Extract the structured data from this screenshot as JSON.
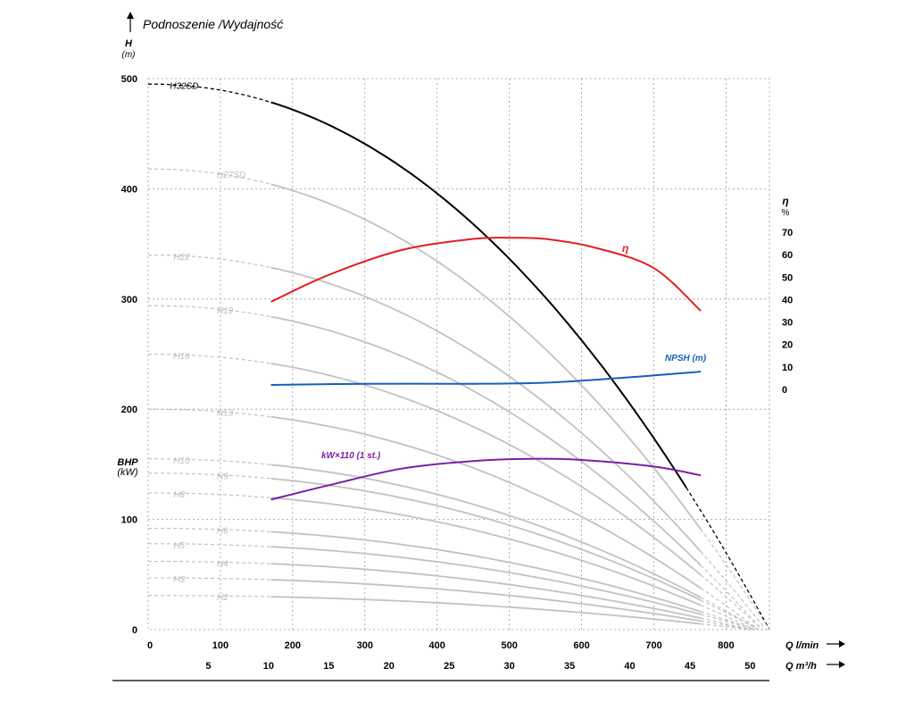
{
  "chart_data": {
    "type": "line",
    "title": "Podnoszenie /Wydajność",
    "y_axis": {
      "label": "H",
      "unit": "(m)",
      "ylim": [
        0,
        500
      ],
      "ticks": [
        0,
        100,
        200,
        300,
        400,
        500
      ]
    },
    "x_axis": {
      "label": "Q l/min",
      "xlim": [
        0,
        860
      ],
      "ticks": [
        0,
        100,
        200,
        300,
        400,
        500,
        600,
        700,
        800
      ]
    },
    "x_axis2": {
      "label": "Q m³/h",
      "ticks": [
        5,
        10,
        15,
        20,
        25,
        30,
        35,
        40,
        45,
        50
      ]
    },
    "bhp_axis": {
      "label": "BHP",
      "unit": "(kW)"
    },
    "eta_axis": {
      "label": "η",
      "unit": "%",
      "ylim": [
        0,
        70
      ],
      "ticks": [
        0,
        10,
        20,
        30,
        40,
        50,
        60,
        70
      ]
    },
    "grid": true,
    "head_curves": [
      {
        "name": "H32SD",
        "h0": 495,
        "qmax": 860,
        "color": "#000000"
      },
      {
        "name": "H27SD",
        "h0": 418,
        "qmax": 860,
        "color": "#bdbdbd"
      },
      {
        "name": "H22",
        "h0": 340,
        "qmax": 855,
        "color": "#bdbdbd"
      },
      {
        "name": "H19",
        "h0": 294,
        "qmax": 850,
        "color": "#bdbdbd"
      },
      {
        "name": "H16",
        "h0": 250,
        "qmax": 850,
        "color": "#bdbdbd"
      },
      {
        "name": "H13",
        "h0": 200,
        "qmax": 845,
        "color": "#bdbdbd"
      },
      {
        "name": "H10",
        "h0": 155,
        "qmax": 845,
        "color": "#bdbdbd"
      },
      {
        "name": "H9",
        "h0": 142,
        "qmax": 845,
        "color": "#bdbdbd"
      },
      {
        "name": "H8",
        "h0": 124,
        "qmax": 840,
        "color": "#bdbdbd"
      },
      {
        "name": "H6",
        "h0": 92,
        "qmax": 840,
        "color": "#bdbdbd"
      },
      {
        "name": "H5",
        "h0": 78,
        "qmax": 840,
        "color": "#bdbdbd"
      },
      {
        "name": "H4",
        "h0": 62,
        "qmax": 835,
        "color": "#bdbdbd"
      },
      {
        "name": "H3",
        "h0": 47,
        "qmax": 835,
        "color": "#bdbdbd"
      },
      {
        "name": "H2",
        "h0": 31,
        "qmax": 835,
        "color": "#bdbdbd"
      }
    ],
    "eta_curve": {
      "name": "η",
      "color": "#e31e24",
      "x": [
        170,
        250,
        350,
        450,
        500,
        550,
        620,
        700,
        765
      ],
      "y": [
        39,
        51,
        62,
        67,
        67.5,
        67,
        63,
        54,
        35
      ]
    },
    "npsh_curve": {
      "name": "NPSH (m)",
      "color": "#1560bd",
      "x": [
        170,
        300,
        450,
        550,
        650,
        750,
        765
      ],
      "y": [
        2,
        2.5,
        2.5,
        3,
        5,
        7.5,
        8
      ]
    },
    "kw_curve": {
      "name": "kW×110 (1 st.)",
      "color": "#7b1fa2",
      "x": [
        170,
        250,
        350,
        450,
        530,
        600,
        700,
        765
      ],
      "y": [
        118,
        131,
        146,
        153,
        155,
        154,
        148,
        140
      ]
    }
  }
}
